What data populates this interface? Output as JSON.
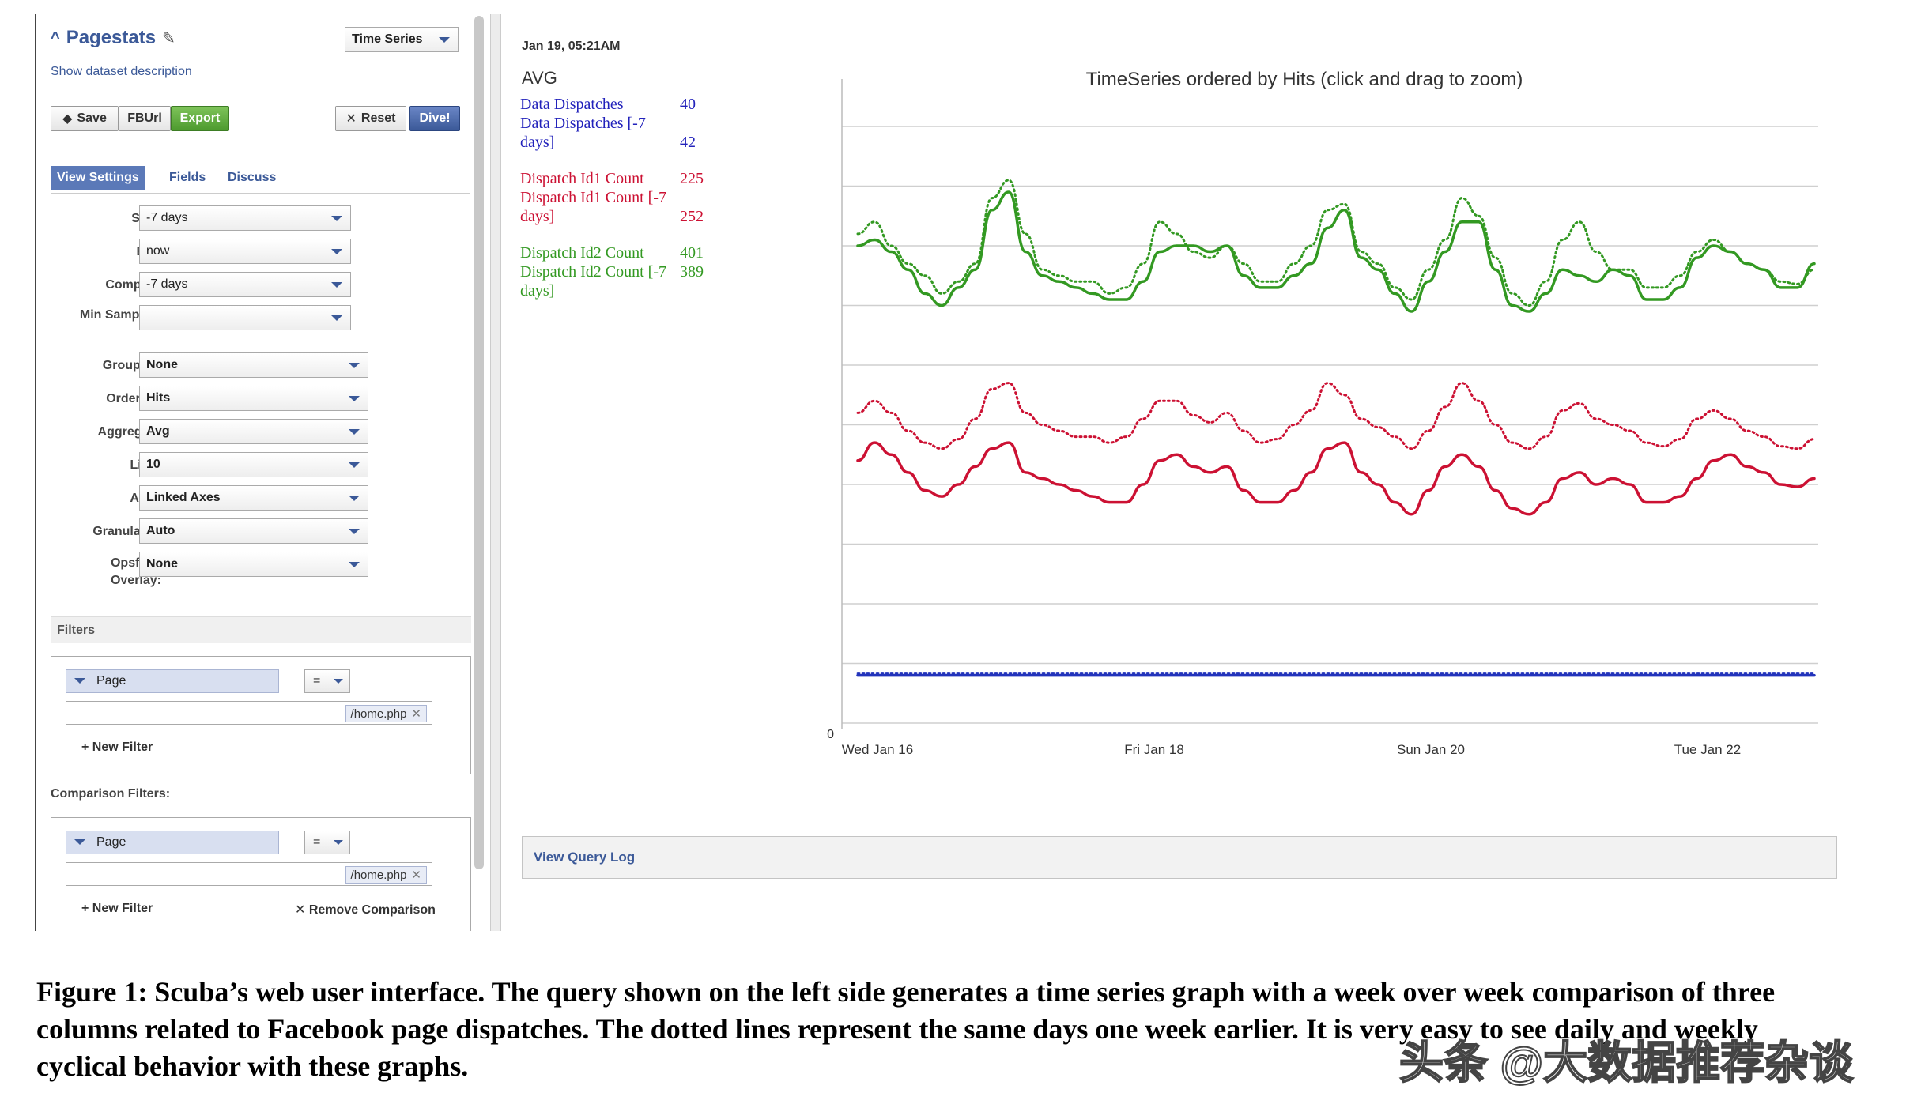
{
  "sidebar": {
    "title": "Pagestats",
    "description_link": "Show dataset description",
    "view_type": "Time Series",
    "buttons": {
      "save": "Save",
      "fburl": "FBUrl",
      "export": "Export",
      "reset": "Reset",
      "dive": "Dive!"
    },
    "tabs": [
      "View Settings",
      "Fields",
      "Discuss"
    ],
    "settings": [
      {
        "label": "Start:",
        "value": "-7 days"
      },
      {
        "label": "End:",
        "value": "now"
      },
      {
        "label": "Compare:",
        "value": "-7 days"
      },
      {
        "label": "Min Samples:",
        "value": ""
      },
      {
        "label": "Group By:",
        "value": "None"
      },
      {
        "label": "Order By:",
        "value": "Hits"
      },
      {
        "label": "Aggregate:",
        "value": "Avg"
      },
      {
        "label": "Limit:",
        "value": "10"
      },
      {
        "label": "Axes:",
        "value": "Linked Axes"
      },
      {
        "label": "Granularity:",
        "value": "Auto"
      },
      {
        "label": "Opsfeed Overlay:",
        "value": "None"
      }
    ],
    "filters_heading": "Filters",
    "filter": {
      "column": "Page",
      "op": "=",
      "value": "/home.php",
      "new_filter": "+ New Filter"
    },
    "comparison_heading": "Comparison Filters:",
    "comparison_filter": {
      "column": "Page",
      "op": "=",
      "value": "/home.php",
      "new_filter": "+ New Filter",
      "remove": "Remove Comparison"
    }
  },
  "hover": {
    "timestamp": "Jan 19, 05:21AM",
    "aggregate": "AVG",
    "rows": [
      {
        "label": "Data Dispatches",
        "value": "40",
        "color": "#2222bb"
      },
      {
        "label": "Data Dispatches [-7 days]",
        "value": "42",
        "color": "#2222bb"
      },
      {
        "label": "Dispatch Id1 Count",
        "value": "225",
        "color": "#cc1133"
      },
      {
        "label": "Dispatch Id1 Count [-7 days]",
        "value": "252",
        "color": "#cc1133"
      },
      {
        "label": "Dispatch Id2 Count",
        "value": "401",
        "color": "#339922"
      },
      {
        "label": "Dispatch Id2 Count [-7 days]",
        "value": "389",
        "color": "#339922"
      }
    ]
  },
  "chart_data": {
    "type": "line",
    "title": "TimeSeries ordered by Hits (click and drag to zoom)",
    "xlabel": "",
    "ylabel": "",
    "x_ticks": [
      "Wed Jan 16",
      "Fri Jan 18",
      "Sun Jan 20",
      "Tue Jan 22"
    ],
    "y_ticks": [
      "0"
    ],
    "grid": true,
    "ylim": [
      0,
      500
    ],
    "x_range_days": [
      0,
      7
    ],
    "series": [
      {
        "name": "Dispatch Id2 Count",
        "color": "#339922",
        "style": "solid",
        "values": [
          400,
          405,
          395,
          380,
          360,
          350,
          365,
          380,
          430,
          445,
          395,
          375,
          370,
          365,
          360,
          355,
          355,
          370,
          395,
          400,
          400,
          395,
          400,
          375,
          365,
          365,
          375,
          385,
          415,
          430,
          390,
          380,
          360,
          345,
          370,
          395,
          420,
          420,
          380,
          350,
          345,
          360,
          380,
          375,
          370,
          380,
          375,
          355,
          355,
          365,
          390,
          400,
          395,
          385,
          380,
          365,
          365,
          385
        ]
      },
      {
        "name": "Dispatch Id2 Count [-7 days]",
        "color": "#339922",
        "style": "dotted",
        "values": [
          410,
          420,
          400,
          385,
          375,
          360,
          370,
          385,
          440,
          455,
          410,
          380,
          375,
          370,
          370,
          360,
          365,
          385,
          420,
          410,
          395,
          390,
          400,
          385,
          370,
          370,
          385,
          400,
          430,
          435,
          395,
          385,
          365,
          355,
          380,
          405,
          440,
          425,
          390,
          360,
          350,
          370,
          405,
          420,
          395,
          380,
          380,
          365,
          365,
          375,
          395,
          405,
          395,
          385,
          380,
          370,
          368,
          380
        ]
      },
      {
        "name": "Dispatch Id1 Count",
        "color": "#cc1133",
        "style": "solid",
        "values": [
          220,
          235,
          225,
          210,
          195,
          190,
          200,
          215,
          230,
          235,
          210,
          205,
          200,
          195,
          190,
          185,
          185,
          200,
          220,
          225,
          215,
          210,
          215,
          195,
          185,
          185,
          195,
          210,
          230,
          235,
          210,
          200,
          185,
          175,
          195,
          215,
          225,
          215,
          195,
          180,
          175,
          185,
          205,
          210,
          200,
          205,
          200,
          185,
          185,
          190,
          205,
          220,
          225,
          215,
          210,
          200,
          198,
          205
        ]
      },
      {
        "name": "Dispatch Id1 Count [-7 days]",
        "color": "#cc1133",
        "style": "dotted",
        "values": [
          260,
          270,
          260,
          245,
          235,
          230,
          238,
          255,
          280,
          285,
          260,
          250,
          245,
          240,
          240,
          235,
          240,
          255,
          270,
          270,
          258,
          252,
          260,
          245,
          235,
          238,
          250,
          262,
          285,
          275,
          255,
          248,
          240,
          230,
          245,
          265,
          285,
          270,
          250,
          235,
          230,
          240,
          262,
          268,
          255,
          250,
          245,
          235,
          232,
          238,
          255,
          262,
          255,
          245,
          240,
          232,
          230,
          238
        ]
      },
      {
        "name": "Data Dispatches",
        "color": "#2233bb",
        "style": "solid",
        "values": [
          40,
          40,
          40,
          40,
          40,
          40,
          40,
          40,
          40,
          40,
          40,
          40,
          40,
          40,
          40,
          40,
          40,
          40,
          40,
          40,
          40,
          40,
          40,
          40,
          40,
          40,
          40,
          40,
          40,
          40,
          40,
          40,
          40,
          40,
          40,
          40,
          40,
          40,
          40,
          40,
          40,
          40,
          40,
          40,
          40,
          40,
          40,
          40,
          40,
          40,
          40,
          40,
          40,
          40,
          40,
          40,
          40,
          40
        ]
      },
      {
        "name": "Data Dispatches [-7 days]",
        "color": "#2233bb",
        "style": "dotted",
        "values": [
          42,
          42,
          42,
          42,
          42,
          42,
          42,
          42,
          42,
          42,
          42,
          42,
          42,
          42,
          42,
          42,
          42,
          42,
          42,
          42,
          42,
          42,
          42,
          42,
          42,
          42,
          42,
          42,
          42,
          42,
          42,
          42,
          42,
          42,
          42,
          42,
          42,
          42,
          42,
          42,
          42,
          42,
          42,
          42,
          42,
          42,
          42,
          42,
          42,
          42,
          42,
          42,
          42,
          42,
          42,
          42,
          42,
          42
        ]
      }
    ]
  },
  "query_log": "View Query Log",
  "caption": "Figure 1: Scuba’s web user interface. The query shown on the left side generates a time series graph with a week over week comparison of three columns related to Facebook page dispatches. The dotted lines represent the same days one week earlier. It is very easy to see daily and weekly cyclical behavior with these graphs.",
  "watermark": "头条 @大数据推荐杂谈"
}
